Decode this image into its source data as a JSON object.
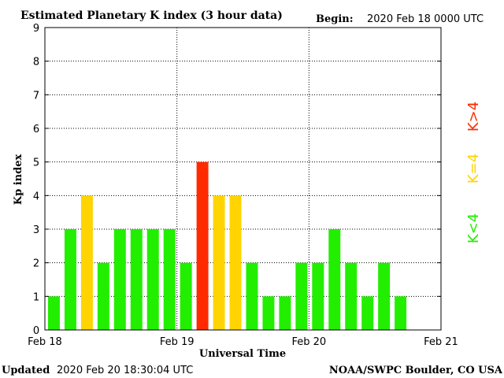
{
  "header": {
    "title": "Estimated Planetary K index (3 hour data)",
    "begin_label": "Begin:",
    "begin_value": "2020 Feb 18 0000 UTC"
  },
  "footer": {
    "updated_label": "Updated",
    "updated_value": "2020 Feb 20 18:30:04 UTC",
    "source": "NOAA/SWPC Boulder, CO USA"
  },
  "legend": [
    {
      "label": "K>4",
      "color": "#ff2a00"
    },
    {
      "label": "K=4",
      "color": "#ffd400"
    },
    {
      "label": "K<4",
      "color": "#22ee00"
    }
  ],
  "chart_data": {
    "type": "bar",
    "title": "Estimated Planetary K index (3 hour data)",
    "xlabel": "Universal Time",
    "ylabel": "Kp index",
    "ylim": [
      0,
      9
    ],
    "yticks": [
      0,
      1,
      2,
      3,
      4,
      5,
      6,
      7,
      8,
      9
    ],
    "xticks": [
      "Feb 18",
      "Feb 19",
      "Feb 20",
      "Feb 21"
    ],
    "interval_hours": 3,
    "slots": 24,
    "grid": true,
    "values": [
      1,
      3,
      4,
      2,
      3,
      3,
      3,
      3,
      2,
      5,
      4,
      4,
      2,
      1,
      1,
      2,
      2,
      3,
      2,
      1,
      2,
      1
    ],
    "colors": {
      "below": "#22ee00",
      "equal": "#ffd400",
      "above": "#ff2a00"
    }
  }
}
